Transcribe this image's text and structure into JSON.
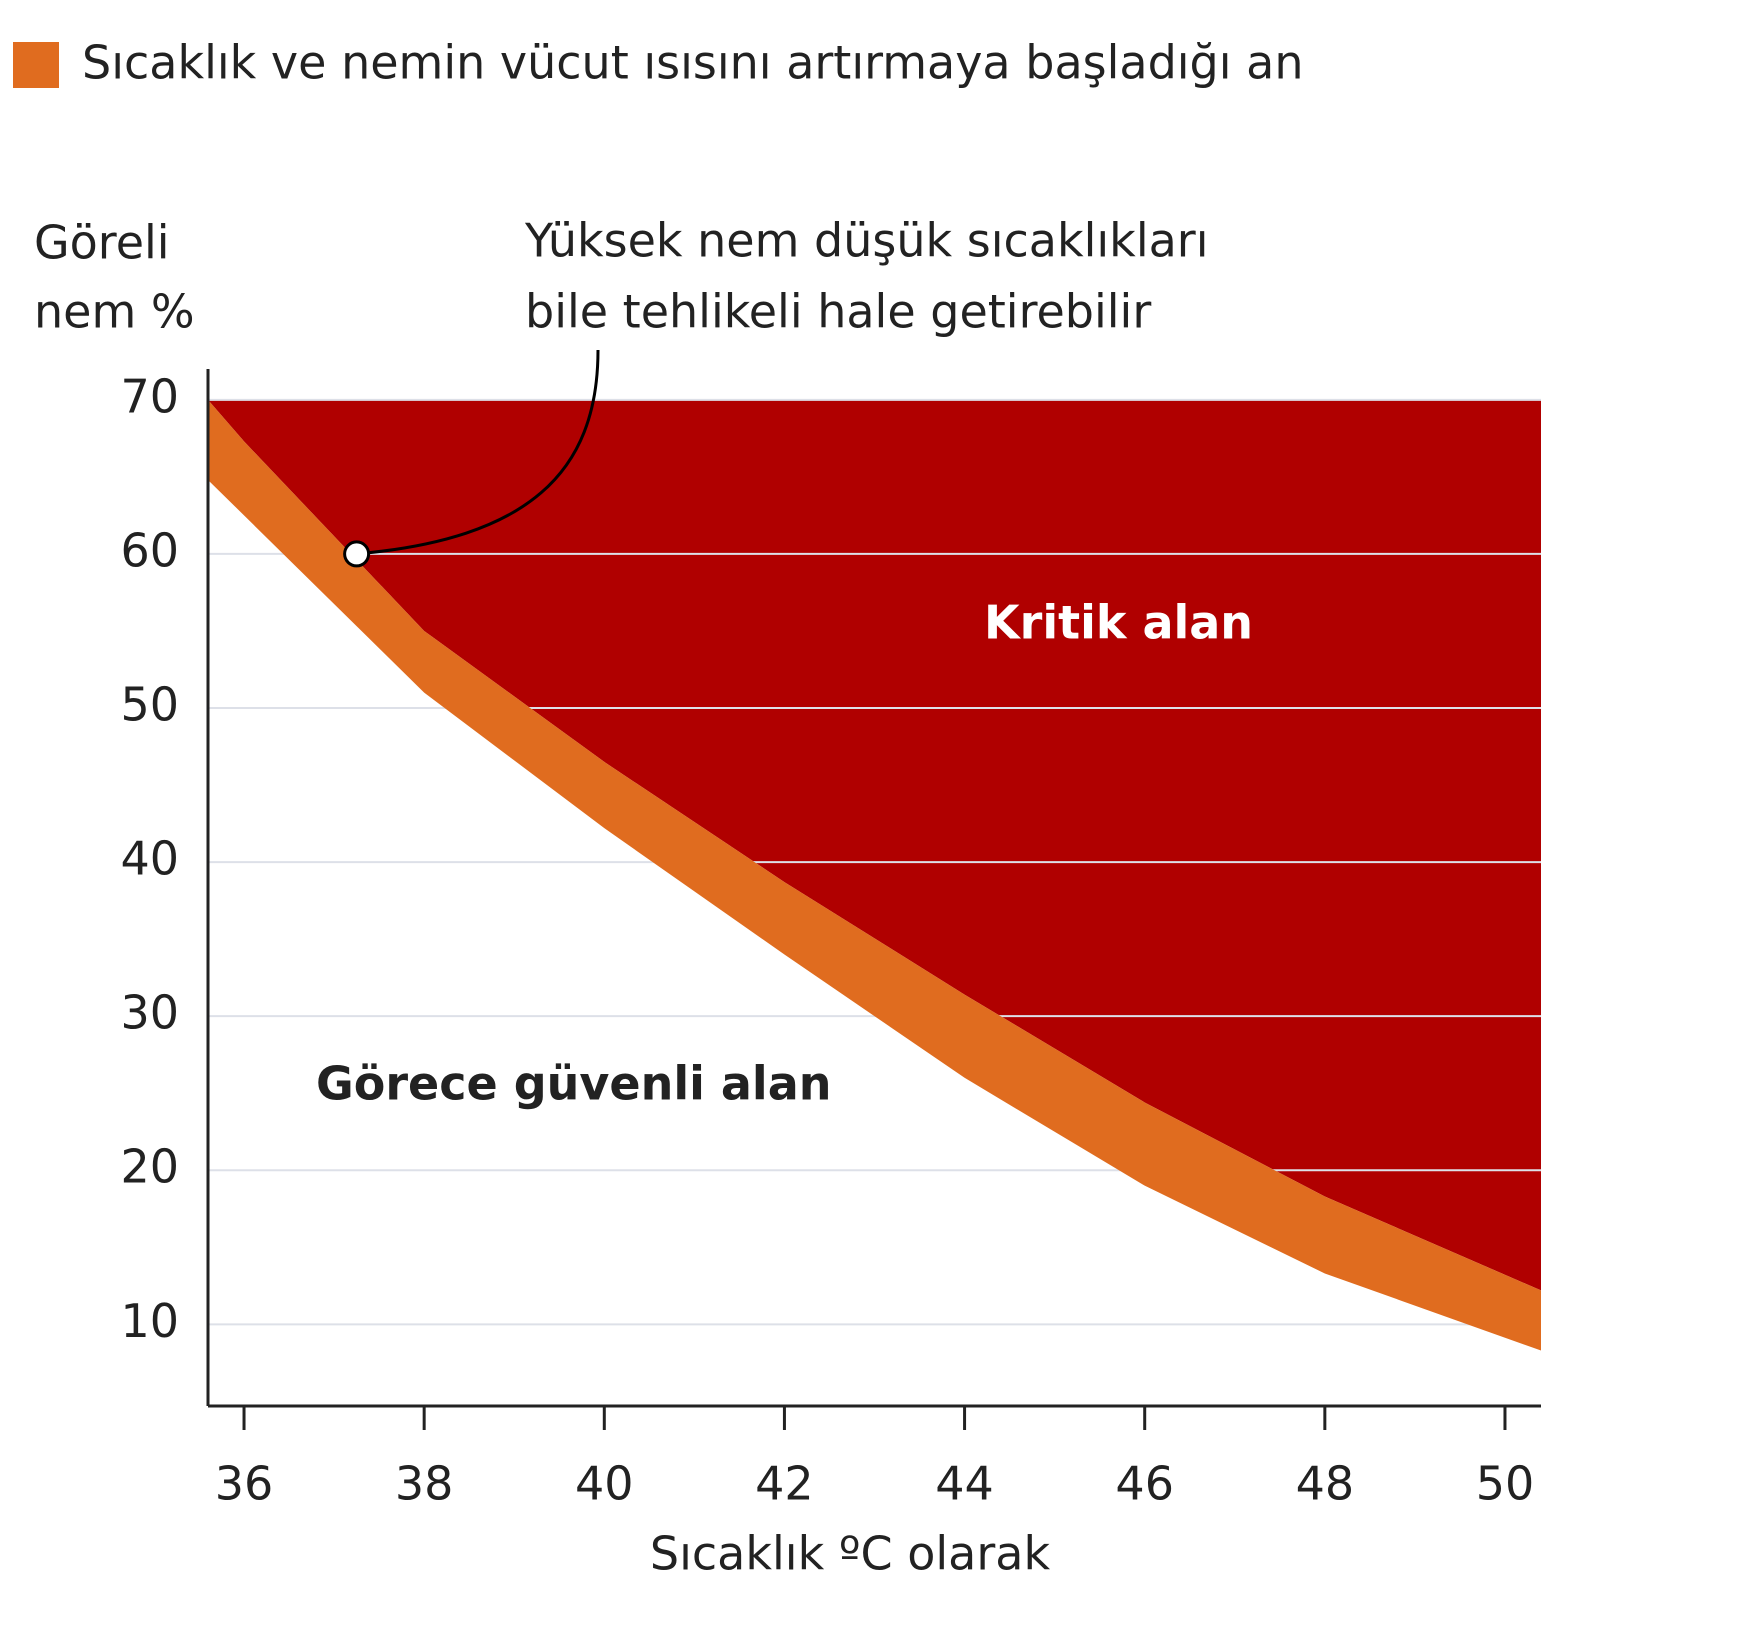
{
  "chart_data": {
    "type": "band",
    "legend_label": "Sıcaklık ve nemin vücut ısısını artırmaya başladığı an",
    "y_label": [
      "Göreli",
      "nem %"
    ],
    "x_label": "Sıcaklık ºC olarak",
    "x": [
      35.6,
      36,
      38,
      40,
      42,
      44,
      46,
      48,
      50.4
    ],
    "series": [
      {
        "name": "Sıcaklık ve nemin vücut ısısını artırmaya başladığı an",
        "color": "#e06c1f",
        "high": [
          70,
          67.3,
          55,
          46.5,
          38.7,
          31.4,
          24.4,
          18.3,
          12.2
        ],
        "low": [
          64.8,
          62.5,
          51,
          42.2,
          34,
          26,
          19,
          13.3,
          8.3
        ]
      }
    ],
    "critical": {
      "label": "Kritik alan",
      "color": "#b00000",
      "top": 70
    },
    "safe_label": "Görece güvenli alan",
    "annotation": {
      "text": [
        "Yüksek nem düşük sıcaklıkları",
        "bile tehlikeli hale getirebilir"
      ],
      "x": 37.25,
      "y": 60
    },
    "xlim": [
      35.6,
      50.4
    ],
    "xticks": [
      36,
      38,
      40,
      42,
      44,
      46,
      48,
      50
    ],
    "ylim": [
      4.7,
      72
    ],
    "yticks": [
      10,
      20,
      30,
      40,
      50,
      60,
      70
    ],
    "grid": true
  }
}
